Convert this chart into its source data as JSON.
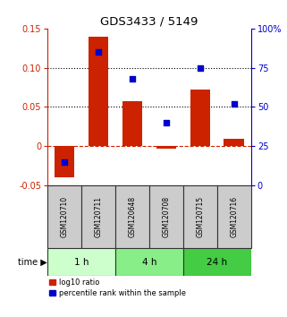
{
  "title": "GDS3433 / 5149",
  "samples": [
    "GSM120710",
    "GSM120711",
    "GSM120648",
    "GSM120708",
    "GSM120715",
    "GSM120716"
  ],
  "log10_ratio": [
    -0.04,
    0.14,
    0.057,
    -0.003,
    0.072,
    0.01
  ],
  "percentile_rank_pct": [
    15,
    85,
    68,
    40,
    75,
    52
  ],
  "bar_color": "#cc2200",
  "dot_color": "#0000cc",
  "ylim_left": [
    -0.05,
    0.15
  ],
  "ylim_right": [
    0,
    100
  ],
  "yticks_left": [
    -0.05,
    0.0,
    0.05,
    0.1,
    0.15
  ],
  "ytick_labels_left": [
    "-0.05",
    "0",
    "0.05",
    "0.10",
    "0.15"
  ],
  "yticks_right": [
    0,
    25,
    50,
    75,
    100
  ],
  "ytick_labels_right": [
    "0",
    "25",
    "50",
    "75",
    "100%"
  ],
  "hlines_dotted": [
    0.05,
    0.1
  ],
  "hline_dashed": 0,
  "time_groups": [
    {
      "label": "1 h",
      "indices": [
        0,
        1
      ],
      "color": "#ccffcc"
    },
    {
      "label": "4 h",
      "indices": [
        2,
        3
      ],
      "color": "#88ee88"
    },
    {
      "label": "24 h",
      "indices": [
        4,
        5
      ],
      "color": "#44cc44"
    }
  ],
  "legend_bar_label": "log10 ratio",
  "legend_dot_label": "percentile rank within the sample",
  "time_label": "time ▶",
  "background_color": "#ffffff",
  "label_area_color": "#cccccc",
  "label_area_border": "#333333",
  "border_color": "#000000"
}
